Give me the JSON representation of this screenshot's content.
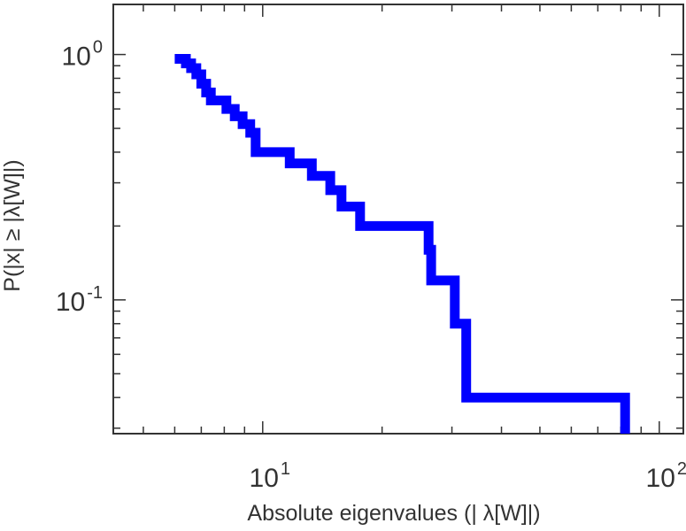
{
  "chart_data": {
    "type": "line",
    "step": true,
    "xscale": "log",
    "yscale": "log",
    "xlim": [
      4.2,
      115
    ],
    "ylim": [
      0.0285,
      1.6
    ],
    "xlabel": "Absolute eigenvalues (|     λ[W]|)",
    "ylabel": "P(|x|  ≥ |λ[W]|)",
    "xticks": [
      {
        "value": 10,
        "base": "10",
        "exp": "1"
      },
      {
        "value": 100,
        "base": "10",
        "exp": "2"
      }
    ],
    "yticks": [
      {
        "value": 1,
        "base": "10",
        "exp": "0"
      },
      {
        "value": 0.1,
        "base": "10",
        "exp": "-1"
      }
    ],
    "grid": false,
    "legend": "none",
    "color": "#0000ff",
    "series": [
      {
        "points": [
          [
            6.0,
            0.96
          ],
          [
            6.4,
            0.96
          ],
          [
            6.4,
            0.92
          ],
          [
            6.6,
            0.92
          ],
          [
            6.6,
            0.88
          ],
          [
            6.8,
            0.88
          ],
          [
            6.8,
            0.83
          ],
          [
            7.0,
            0.83
          ],
          [
            7.0,
            0.76
          ],
          [
            7.2,
            0.76
          ],
          [
            7.2,
            0.7
          ],
          [
            7.4,
            0.7
          ],
          [
            7.4,
            0.65
          ],
          [
            8.1,
            0.65
          ],
          [
            8.1,
            0.6
          ],
          [
            8.5,
            0.6
          ],
          [
            8.5,
            0.56
          ],
          [
            8.9,
            0.56
          ],
          [
            8.9,
            0.52
          ],
          [
            9.3,
            0.52
          ],
          [
            9.3,
            0.48
          ],
          [
            9.6,
            0.48
          ],
          [
            9.6,
            0.4
          ],
          [
            11.7,
            0.4
          ],
          [
            11.7,
            0.36
          ],
          [
            13.3,
            0.36
          ],
          [
            13.3,
            0.32
          ],
          [
            14.8,
            0.32
          ],
          [
            14.8,
            0.28
          ],
          [
            15.8,
            0.28
          ],
          [
            15.8,
            0.24
          ],
          [
            17.6,
            0.24
          ],
          [
            17.6,
            0.2
          ],
          [
            26.2,
            0.2
          ],
          [
            26.2,
            0.16
          ],
          [
            26.6,
            0.16
          ],
          [
            26.6,
            0.12
          ],
          [
            30.5,
            0.12
          ],
          [
            30.5,
            0.08
          ],
          [
            32.6,
            0.08
          ],
          [
            32.6,
            0.04
          ],
          [
            82.0,
            0.04
          ],
          [
            82.0,
            0.0285
          ]
        ]
      }
    ]
  }
}
